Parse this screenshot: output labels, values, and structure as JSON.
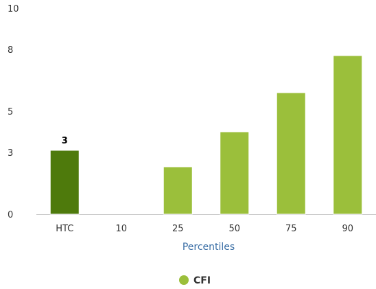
{
  "chart_data": {
    "type": "bar",
    "categories": [
      "HTC",
      "10",
      "25",
      "50",
      "75",
      "90"
    ],
    "series": [
      {
        "name": "CFI",
        "values": [
          3.1,
          null,
          2.3,
          4.0,
          5.9,
          7.7
        ]
      }
    ],
    "highlight_index": 0,
    "data_labels": [
      {
        "index": 0,
        "text": "3"
      }
    ],
    "xlabel": "Percentiles",
    "ylabel": "",
    "yticks": [
      0,
      3,
      5,
      8,
      10
    ],
    "ylim": [
      0,
      10
    ],
    "grid": false,
    "legend": {
      "position": "bottom-center",
      "entries": [
        "CFI"
      ]
    },
    "colors": {
      "bar": "#9bbf3b",
      "highlight": "#4e7a0c",
      "bar_edge": "#ffffff",
      "axis_title": "#3a6ea5"
    }
  }
}
